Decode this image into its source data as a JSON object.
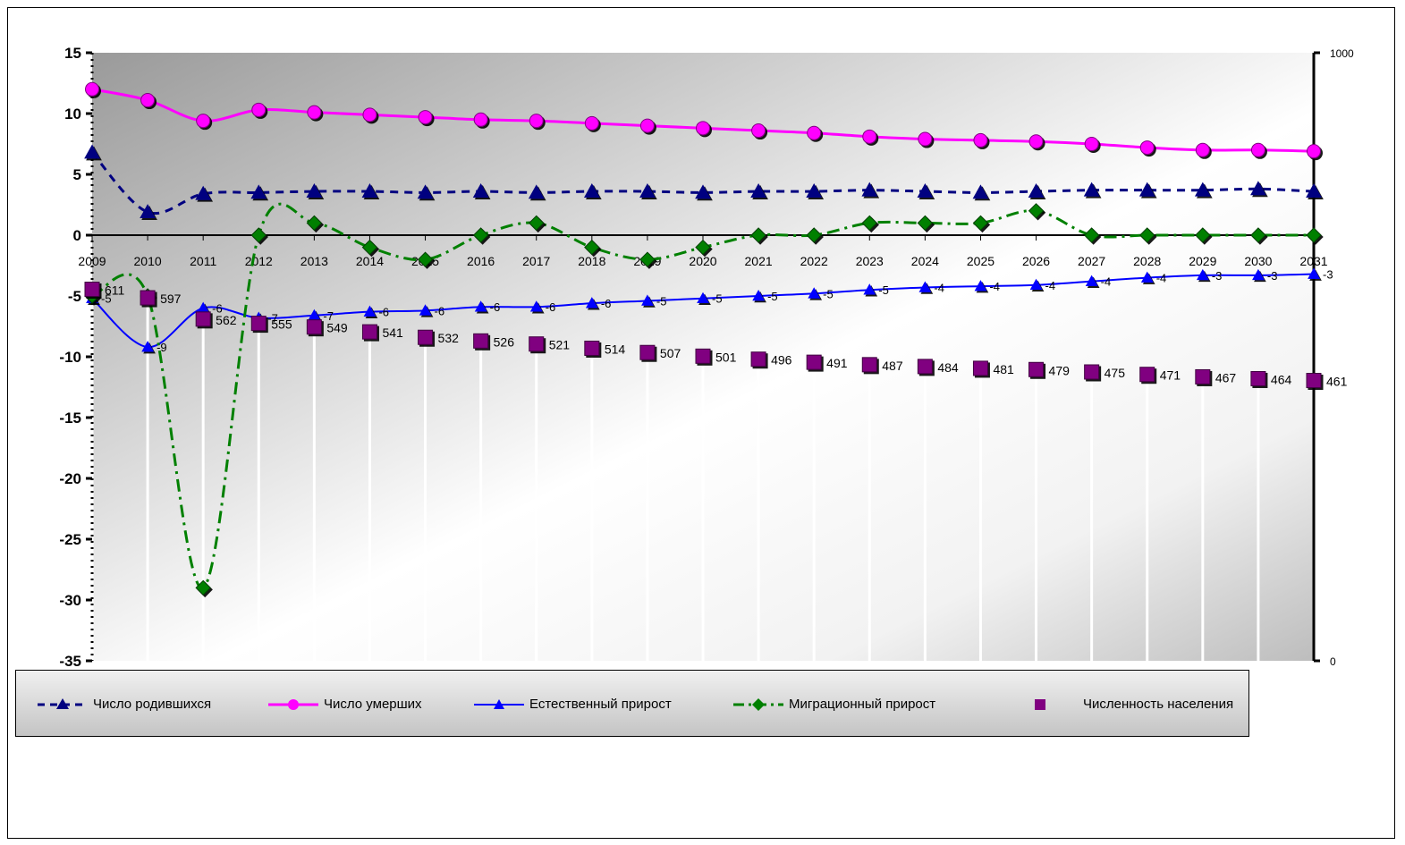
{
  "chart_data": {
    "type": "line",
    "title": "",
    "xlabel": "",
    "ylabel": "",
    "categories": [
      "2009",
      "2010",
      "2011",
      "2012",
      "2013",
      "2014",
      "2015",
      "2016",
      "2017",
      "2018",
      "2019",
      "2020",
      "2021",
      "2022",
      "2023",
      "2024",
      "2025",
      "2026",
      "2027",
      "2028",
      "2029",
      "2030",
      "2031"
    ],
    "ylim": [
      -35,
      15
    ],
    "y_ticks": [
      "15",
      "10",
      "5",
      "0",
      "-5",
      "-10",
      "-15",
      "-20",
      "-25",
      "-30",
      "-35"
    ],
    "y2lim": [
      0,
      1000
    ],
    "y2_ticks": [
      "1000",
      "0"
    ],
    "legend_position": "bottom",
    "grid": false,
    "series": [
      {
        "name": "Число родившихся",
        "axis": "left",
        "color": "#000080",
        "style": "dashed-triangle",
        "values": [
          6.8,
          1.9,
          3.4,
          3.5,
          3.6,
          3.6,
          3.5,
          3.6,
          3.5,
          3.6,
          3.6,
          3.5,
          3.6,
          3.6,
          3.7,
          3.6,
          3.5,
          3.6,
          3.7,
          3.7,
          3.7,
          3.8,
          3.6
        ]
      },
      {
        "name": "Число умерших",
        "axis": "left",
        "color": "#ff00ff",
        "style": "solid-circle",
        "values": [
          12.0,
          11.1,
          9.4,
          10.3,
          10.1,
          9.9,
          9.7,
          9.5,
          9.4,
          9.2,
          9.0,
          8.8,
          8.6,
          8.4,
          8.1,
          7.9,
          7.8,
          7.7,
          7.5,
          7.2,
          7.0,
          7.0,
          6.9
        ]
      },
      {
        "name": "Естественный прирост",
        "axis": "left",
        "color": "#0000ff",
        "style": "solid-triangle",
        "values": [
          -5.2,
          -9.2,
          -6.0,
          -6.8,
          -6.6,
          -6.3,
          -6.2,
          -5.9,
          -5.9,
          -5.6,
          -5.4,
          -5.2,
          -5.0,
          -4.8,
          -4.5,
          -4.3,
          -4.2,
          -4.1,
          -3.8,
          -3.5,
          -3.3,
          -3.3,
          -3.2
        ],
        "labels": [
          "-5",
          "-9",
          "-6",
          "-7",
          "-7",
          "-6",
          "-6",
          "-6",
          "-6",
          "-6",
          "-5",
          "-5",
          "-5",
          "-5",
          "-5",
          "-4",
          "-4",
          "-4",
          "-4",
          "-4",
          "-3",
          "-3",
          "-3"
        ]
      },
      {
        "name": "Миграционный прирост",
        "axis": "left",
        "color": "#008000",
        "style": "dashdot-diamond",
        "values": [
          -5,
          -5,
          -29,
          0,
          1,
          -1,
          -2,
          0,
          1,
          -1,
          -2,
          -1,
          0,
          0,
          1,
          1,
          1,
          2,
          0,
          0,
          0,
          0,
          0
        ]
      },
      {
        "name": "Численность населения",
        "axis": "right",
        "color": "#800080",
        "style": "square-marker-dropline",
        "values": [
          611,
          597,
          562,
          555,
          549,
          541,
          532,
          526,
          521,
          514,
          507,
          501,
          496,
          491,
          487,
          484,
          481,
          479,
          475,
          471,
          467,
          464,
          461
        ],
        "labels": [
          "611",
          "597",
          "562",
          "555",
          "549",
          "541",
          "532",
          "526",
          "521",
          "514",
          "507",
          "501",
          "496",
          "491",
          "487",
          "484",
          "481",
          "479",
          "475",
          "471",
          "467",
          "464",
          "461"
        ]
      }
    ]
  }
}
